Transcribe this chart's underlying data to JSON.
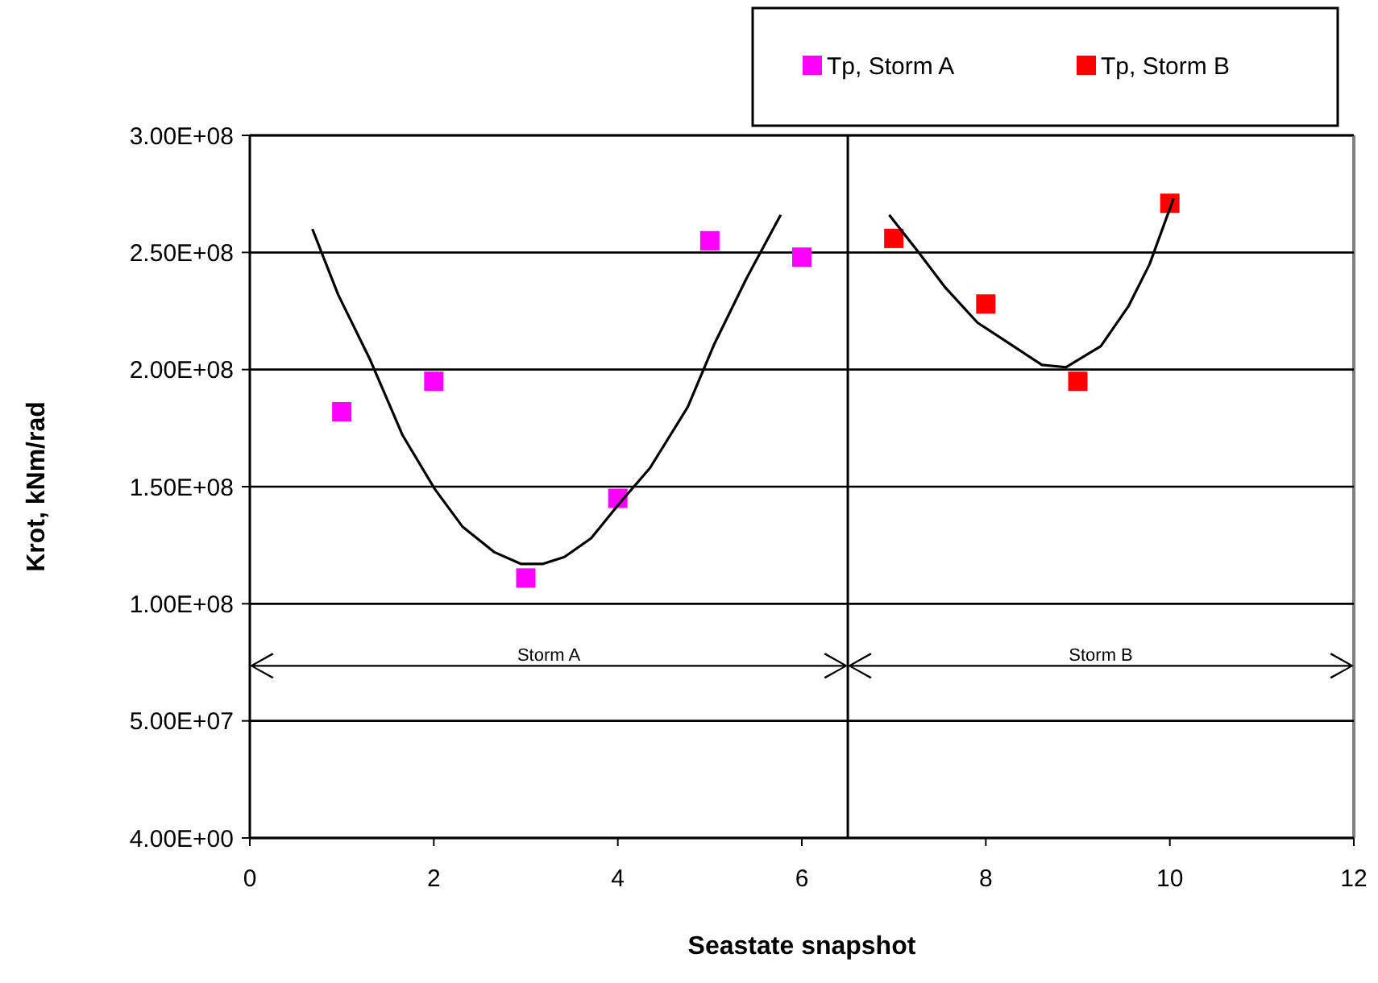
{
  "chart_data": {
    "type": "scatter",
    "xlabel": "Seastate snapshot",
    "ylabel": "Krot, kNm/rad",
    "xlim": [
      0,
      12
    ],
    "xticks": [
      0,
      2,
      4,
      6,
      8,
      10,
      12
    ],
    "ylim": [
      4,
      300000000
    ],
    "yticks": [
      {
        "value": 4,
        "label": "4.00E+00"
      },
      {
        "value": 50000000,
        "label": "5.00E+07"
      },
      {
        "value": 100000000,
        "label": "1.00E+08"
      },
      {
        "value": 150000000,
        "label": "1.50E+08"
      },
      {
        "value": 200000000,
        "label": "2.00E+08"
      },
      {
        "value": 250000000,
        "label": "2.50E+08"
      },
      {
        "value": 300000000,
        "label": "3.00E+08"
      }
    ],
    "grid": "y",
    "legend": "top right",
    "marker": "square",
    "series": [
      {
        "name": "Tp, Storm A",
        "color": "#ff00ff",
        "x": [
          1,
          2,
          3,
          4,
          5,
          6
        ],
        "values": [
          182000000,
          195000000,
          111000000,
          145000000,
          255000000,
          248000000
        ]
      },
      {
        "name": "Tp, Storm B",
        "color": "#ff0000",
        "x": [
          7,
          8,
          9,
          10
        ],
        "values": [
          256000000,
          228000000,
          195000000,
          271000000
        ]
      },
      {
        "type": "line",
        "color": "#000000",
        "marker": "none",
        "x": [
          0.68,
          0.96,
          1.31,
          1.66,
          2.01,
          2.31,
          2.66,
          2.95,
          3.18,
          3.42,
          3.71,
          4.0,
          4.35,
          4.76,
          5.05,
          5.4,
          5.77
        ],
        "values": [
          260000000,
          232000000,
          204000000,
          172000000,
          149000000,
          133000000,
          122000000,
          117000000,
          117000000,
          120000000,
          128000000,
          142000000,
          158000000,
          184000000,
          211000000,
          239000000,
          266000000
        ]
      },
      {
        "type": "line",
        "color": "#000000",
        "marker": "none",
        "x": [
          6.95,
          7.27,
          7.56,
          7.91,
          8.26,
          8.61,
          8.87,
          9.25,
          9.55,
          9.78,
          10.04
        ],
        "values": [
          266000000,
          250000000,
          235000000,
          220000000,
          211000000,
          202000000,
          201000000,
          210000000,
          227000000,
          245000000,
          273000000
        ]
      }
    ],
    "ref_lines": [
      {
        "axis": "x",
        "value": 6.5,
        "color": "#000000"
      }
    ],
    "annotations": [
      "Storm A",
      "Storm B"
    ]
  }
}
